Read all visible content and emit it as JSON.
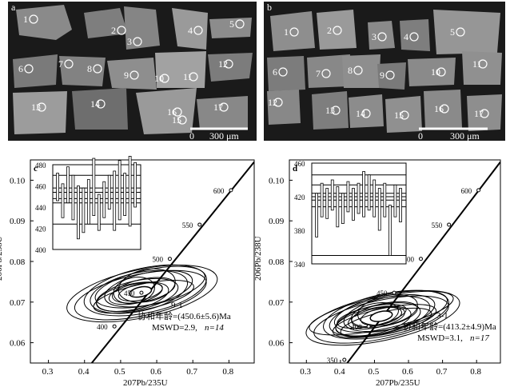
{
  "panel_a": {
    "label": "a",
    "scale_text": "300 μm",
    "scale_zero": "0",
    "spot_labels": [
      "1",
      "2",
      "3",
      "4",
      "5",
      "6",
      "7",
      "8",
      "9",
      "10",
      "11",
      "12",
      "13",
      "14",
      "15",
      "16",
      "17"
    ]
  },
  "panel_b": {
    "label": "b",
    "scale_text": "300 μm",
    "scale_zero": "0",
    "spot_labels": [
      "1",
      "2",
      "3",
      "4",
      "5",
      "6",
      "7",
      "8",
      "9",
      "10",
      "11",
      "12",
      "13",
      "14",
      "15",
      "16",
      "17"
    ]
  },
  "chart_data": [
    {
      "panel": "c",
      "type": "scatter",
      "sample": "9-1",
      "age_text": "协和年龄=(450.6±5.6)Ma",
      "mswd_text": "MSWD=2.9,",
      "n_text": "n=14",
      "xlabel": "207Pb/235U",
      "ylabel": "206Pb/238U",
      "xticks": [
        "0.3",
        "0.4",
        "0.5",
        "0.6",
        "0.7",
        "0.8"
      ],
      "yticks": [
        "0.06",
        "0.07",
        "0.08",
        "0.09",
        "0.10"
      ],
      "concordia_labels": [
        "400",
        "450",
        "500",
        "550",
        "600"
      ],
      "inset_yticks": [
        "400",
        "420",
        "440",
        "460",
        "480"
      ]
    },
    {
      "panel": "d",
      "type": "scatter",
      "sample": "3-1",
      "age_text": "协和年龄=(413.2±4.9)Ma",
      "mswd_text": "MSWD=3.1,",
      "n_text": "n=17",
      "xlabel": "207Pb/235U",
      "ylabel": "206Pb/238U",
      "xticks": [
        "0.3",
        "0.4",
        "0.5",
        "0.6",
        "0.7",
        "0.8"
      ],
      "yticks": [
        "0.06",
        "0.07",
        "0.08",
        "0.09",
        "0.10"
      ],
      "concordia_labels": [
        "350",
        "400",
        "450",
        "500",
        "550",
        "600"
      ],
      "inset_yticks": [
        "340",
        "380",
        "420",
        "460"
      ]
    }
  ]
}
